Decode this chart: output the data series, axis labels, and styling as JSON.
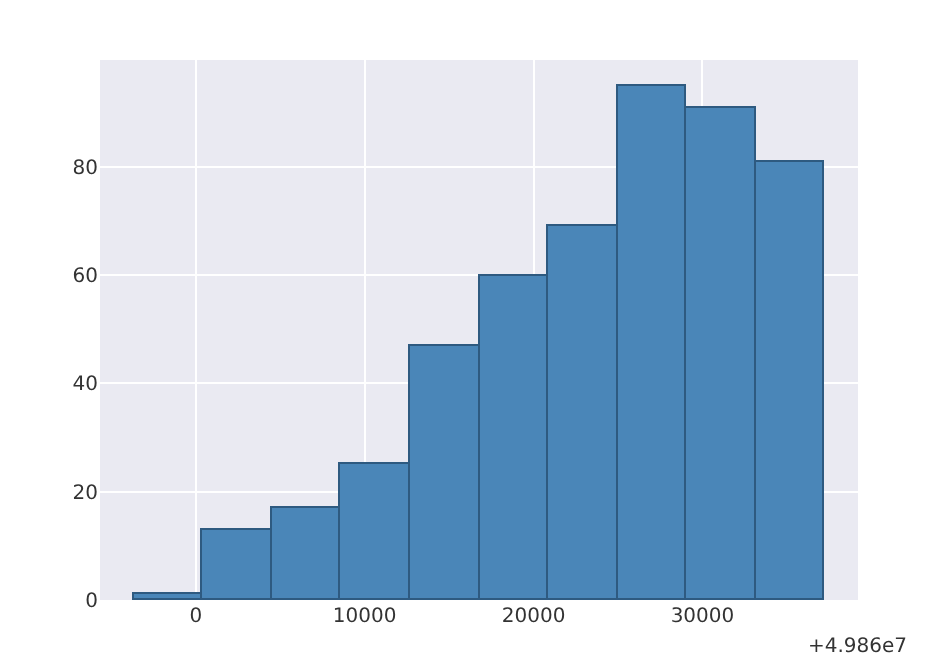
{
  "chart_data": {
    "type": "histogram",
    "bins": [
      -3690,
      400,
      4490,
      8590,
      12680,
      16770,
      20860,
      24960,
      29050,
      33140,
      37230
    ],
    "values": [
      1,
      13,
      17,
      25,
      47,
      60,
      69,
      95,
      91,
      81
    ],
    "color": "#4a86b8",
    "xlim": [
      -5670,
      39210
    ],
    "xticks": [
      0,
      10000,
      20000,
      30000
    ],
    "ylim": [
      0,
      99.7
    ],
    "yticks": [
      0,
      20,
      40,
      60,
      80
    ],
    "annotations": [
      "+4.986e7"
    ],
    "grid": true
  }
}
